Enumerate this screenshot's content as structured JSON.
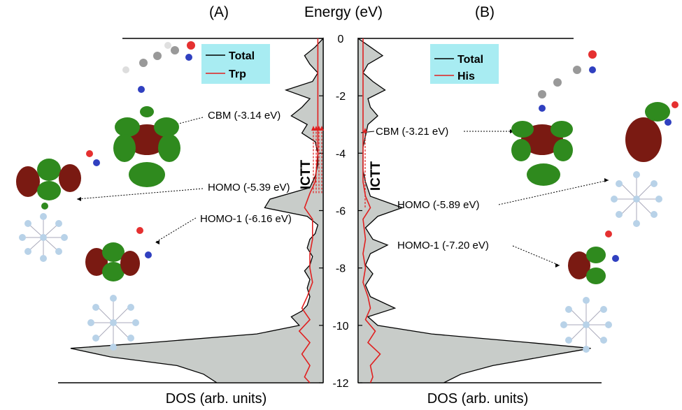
{
  "chart_data": [
    {
      "panel": "(A)",
      "type": "area",
      "orientation": "horizontal-mirrored",
      "xlabel": "DOS (arb. units)",
      "ylabel": "Energy (eV)",
      "ylim": [
        -12,
        0
      ],
      "yticks": [
        "0",
        "-2",
        "-4",
        "-6",
        "-8",
        "-10",
        "-12"
      ],
      "legend": {
        "position": "top",
        "entries": [
          "Total",
          "Trp"
        ]
      },
      "series": [
        {
          "name": "Total",
          "color": "#000000",
          "fill": "#c8ccc9",
          "points": [
            [
              0,
              0.0
            ],
            [
              -0.3,
              0.03
            ],
            [
              -0.6,
              0.07
            ],
            [
              -0.9,
              0.05
            ],
            [
              -1.2,
              0.02
            ],
            [
              -1.5,
              0.04
            ],
            [
              -1.8,
              0.14
            ],
            [
              -2.1,
              0.05
            ],
            [
              -2.4,
              0.08
            ],
            [
              -2.7,
              0.12
            ],
            [
              -3.0,
              0.06
            ],
            [
              -3.3,
              0.08
            ],
            [
              -3.6,
              0.03
            ],
            [
              -4.0,
              0.02
            ],
            [
              -4.4,
              0.02
            ],
            [
              -4.8,
              0.03
            ],
            [
              -5.2,
              0.05
            ],
            [
              -5.6,
              0.2
            ],
            [
              -5.9,
              0.22
            ],
            [
              -6.2,
              0.06
            ],
            [
              -6.5,
              0.02
            ],
            [
              -6.8,
              0.03
            ],
            [
              -7.0,
              0.05
            ],
            [
              -7.3,
              0.06
            ],
            [
              -7.6,
              0.04
            ],
            [
              -7.9,
              0.05
            ],
            [
              -8.1,
              0.07
            ],
            [
              -8.4,
              0.05
            ],
            [
              -8.7,
              0.06
            ],
            [
              -9.0,
              0.05
            ],
            [
              -9.3,
              0.06
            ],
            [
              -9.5,
              0.08
            ],
            [
              -9.7,
              0.12
            ],
            [
              -10.0,
              0.09
            ],
            [
              -10.3,
              0.25
            ],
            [
              -10.6,
              0.65
            ],
            [
              -10.8,
              0.95
            ],
            [
              -11.1,
              0.8
            ],
            [
              -11.4,
              0.55
            ],
            [
              -11.7,
              0.45
            ],
            [
              -12.0,
              0.4
            ]
          ]
        },
        {
          "name": "Trp",
          "color": "#e02020",
          "points": [
            [
              0,
              0.02
            ],
            [
              -1.0,
              0.02
            ],
            [
              -2.0,
              0.02
            ],
            [
              -3.0,
              0.02
            ],
            [
              -4.0,
              0.02
            ],
            [
              -5.0,
              0.03
            ],
            [
              -5.4,
              0.05
            ],
            [
              -5.9,
              0.07
            ],
            [
              -6.3,
              0.04
            ],
            [
              -7.0,
              0.04
            ],
            [
              -7.5,
              0.05
            ],
            [
              -8.0,
              0.05
            ],
            [
              -8.5,
              0.04
            ],
            [
              -9.0,
              0.06
            ],
            [
              -9.4,
              0.08
            ],
            [
              -9.8,
              0.05
            ],
            [
              -10.2,
              0.09
            ],
            [
              -10.6,
              0.05
            ],
            [
              -11.0,
              0.08
            ],
            [
              -11.4,
              0.05
            ],
            [
              -11.8,
              0.07
            ],
            [
              -12.0,
              0.05
            ]
          ]
        }
      ],
      "annotations": [
        {
          "text": "CBM (-3.14 eV)",
          "energy": -3.14
        },
        {
          "text": "HOMO (-5.39 eV)",
          "energy": -5.39
        },
        {
          "text": "HOMO-1 (-6.16 eV)",
          "energy": -6.16
        },
        {
          "text": "ICTT",
          "from": -5.39,
          "to": -3.14
        }
      ]
    },
    {
      "panel": "(B)",
      "type": "area",
      "orientation": "horizontal",
      "xlabel": "DOS (arb. units)",
      "ylabel": "Energy (eV)",
      "ylim": [
        -12,
        0
      ],
      "yticks": [
        "0",
        "-2",
        "-4",
        "-6",
        "-8",
        "-10",
        "-12"
      ],
      "legend": {
        "position": "top",
        "entries": [
          "Total",
          "His"
        ]
      },
      "series": [
        {
          "name": "Total",
          "color": "#000000",
          "fill": "#c8ccc9",
          "points": [
            [
              0,
              0.0
            ],
            [
              -0.3,
              0.05
            ],
            [
              -0.6,
              0.1
            ],
            [
              -0.9,
              0.04
            ],
            [
              -1.2,
              0.02
            ],
            [
              -1.5,
              0.06
            ],
            [
              -1.8,
              0.11
            ],
            [
              -2.1,
              0.04
            ],
            [
              -2.4,
              0.05
            ],
            [
              -2.7,
              0.08
            ],
            [
              -3.0,
              0.04
            ],
            [
              -3.4,
              0.03
            ],
            [
              -3.8,
              0.02
            ],
            [
              -4.2,
              0.02
            ],
            [
              -4.6,
              0.02
            ],
            [
              -5.0,
              0.03
            ],
            [
              -5.5,
              0.05
            ],
            [
              -5.9,
              0.18
            ],
            [
              -6.2,
              0.08
            ],
            [
              -6.6,
              0.03
            ],
            [
              -7.0,
              0.06
            ],
            [
              -7.2,
              0.12
            ],
            [
              -7.5,
              0.05
            ],
            [
              -7.9,
              0.03
            ],
            [
              -8.2,
              0.06
            ],
            [
              -8.6,
              0.03
            ],
            [
              -9.0,
              0.05
            ],
            [
              -9.4,
              0.15
            ],
            [
              -9.7,
              0.04
            ],
            [
              -10.0,
              0.08
            ],
            [
              -10.3,
              0.3
            ],
            [
              -10.6,
              0.7
            ],
            [
              -10.8,
              0.95
            ],
            [
              -11.1,
              0.75
            ],
            [
              -11.4,
              0.55
            ],
            [
              -11.7,
              0.42
            ],
            [
              -12.0,
              0.35
            ]
          ]
        },
        {
          "name": "His",
          "color": "#e02020",
          "points": [
            [
              0,
              0.02
            ],
            [
              -1.0,
              0.02
            ],
            [
              -2.0,
              0.02
            ],
            [
              -3.0,
              0.02
            ],
            [
              -4.0,
              0.02
            ],
            [
              -5.0,
              0.02
            ],
            [
              -5.5,
              0.03
            ],
            [
              -5.9,
              0.05
            ],
            [
              -6.3,
              0.02
            ],
            [
              -7.0,
              0.03
            ],
            [
              -7.5,
              0.02
            ],
            [
              -8.0,
              0.03
            ],
            [
              -8.5,
              0.02
            ],
            [
              -9.0,
              0.04
            ],
            [
              -9.4,
              0.05
            ],
            [
              -9.8,
              0.03
            ],
            [
              -10.2,
              0.07
            ],
            [
              -10.6,
              0.04
            ],
            [
              -11.0,
              0.09
            ],
            [
              -11.4,
              0.05
            ],
            [
              -11.8,
              0.06
            ],
            [
              -12.0,
              0.05
            ]
          ]
        }
      ],
      "annotations": [
        {
          "text": "CBM (-3.21 eV)",
          "energy": -3.21
        },
        {
          "text": "HOMO (-5.89 eV)",
          "energy": -5.89
        },
        {
          "text": "HOMO-1 (-7.20 eV)",
          "energy": -7.2
        },
        {
          "text": "ICTT",
          "from": -5.89,
          "to": -3.21
        }
      ]
    }
  ],
  "header": {
    "panel_a": "(A)",
    "axis_title": "Energy (eV)",
    "panel_b": "(B)"
  },
  "colors": {
    "total": "#000000",
    "fragment": "#e02020",
    "fill": "#c8ccc9",
    "legend_bg": "#a8ecf2",
    "orbital_green": "#2f8a1e",
    "orbital_red": "#7a1a12",
    "cluster": "#b8d2e8"
  }
}
